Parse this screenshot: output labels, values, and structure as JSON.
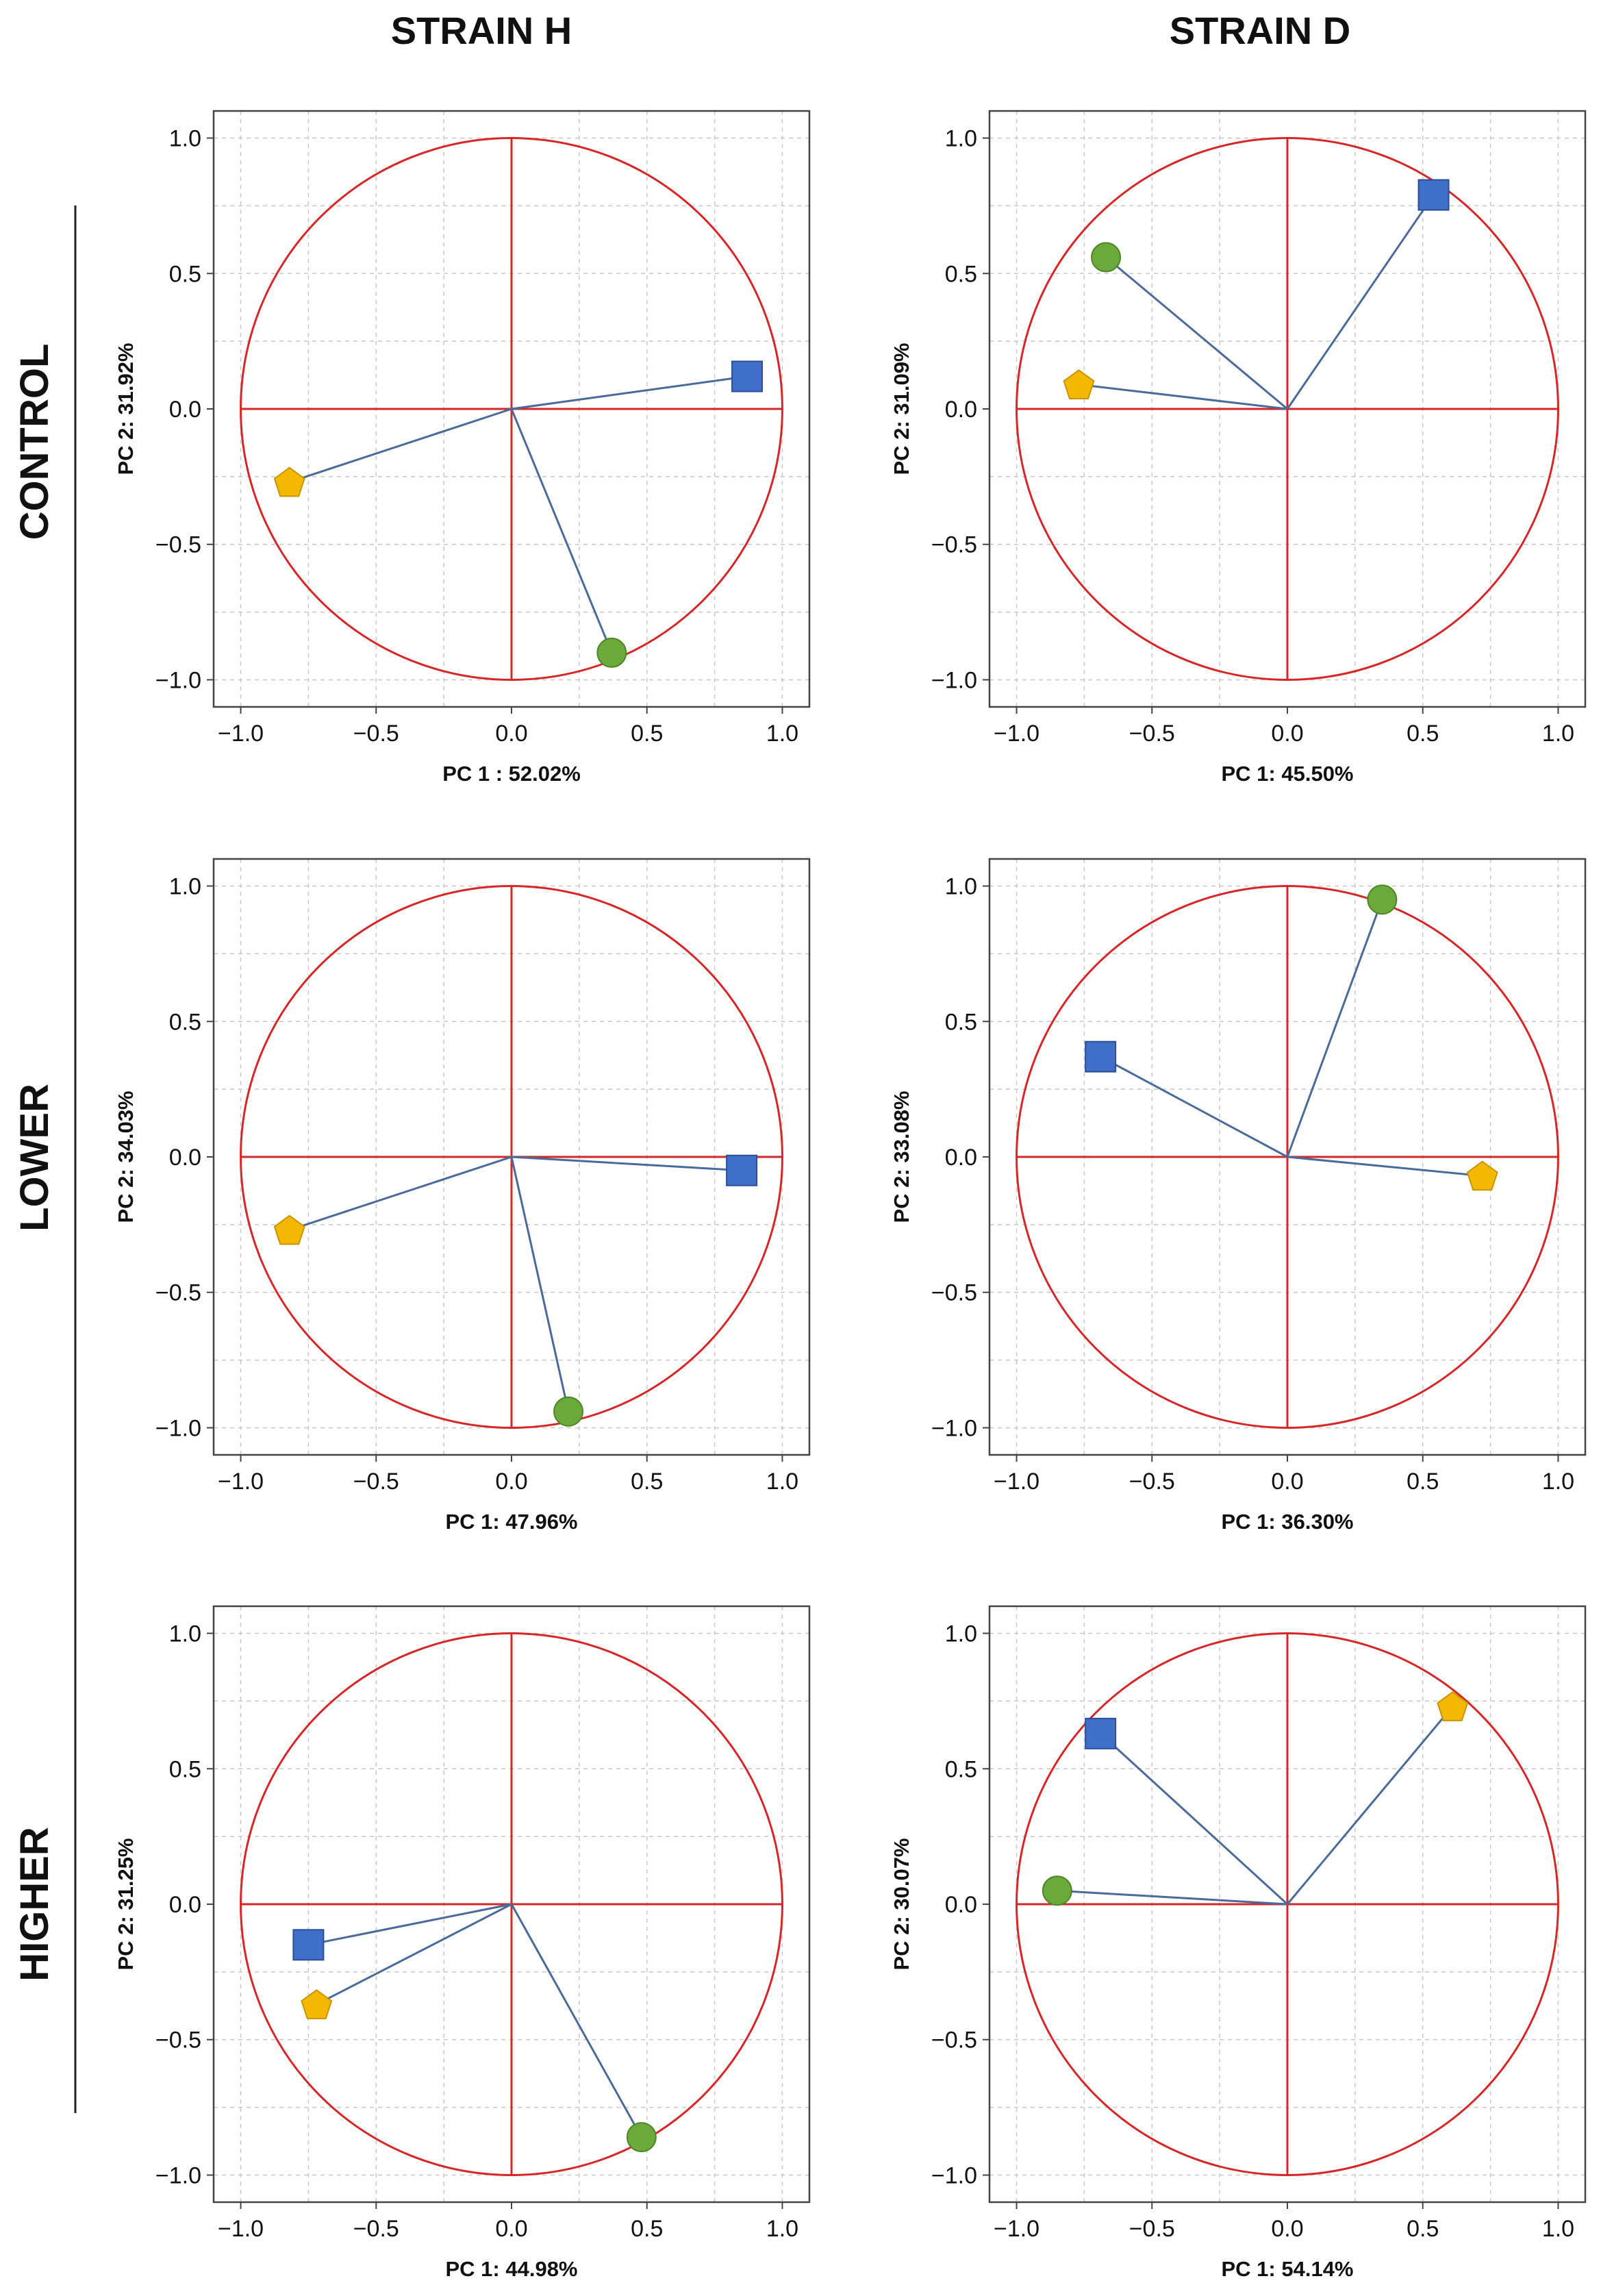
{
  "figure": {
    "column_titles": [
      "STRAIN H",
      "STRAIN D"
    ],
    "row_titles": [
      "CONTROL",
      "LOWER",
      "HIGHER"
    ]
  },
  "colors": {
    "circle": "#d62728",
    "axes_lines": "#d62728",
    "vector": "#4a6b9a",
    "square": "#3f6fc8",
    "circle_marker": "#6aaa3a",
    "pentagon": "#f5b800",
    "grid": "#c8c8c8",
    "frame": "#444444"
  },
  "marker_legend": {
    "square": "square-marker",
    "circle": "circle-marker",
    "pentagon": "pentagon-marker"
  },
  "chart_data": [
    {
      "type": "scatter",
      "title": "STRAIN H - CONTROL",
      "xlabel": "PC 1 : 52.02%",
      "ylabel": "PC 2: 31.92%",
      "xlim": [
        -1.1,
        1.1
      ],
      "ylim": [
        -1.1,
        1.1
      ],
      "xticks": [
        "−1.0",
        "−0.5",
        "0.0",
        "0.5",
        "1.0"
      ],
      "yticks": [
        "1.0",
        "0.5",
        "0.0",
        "−0.5",
        "−1.0"
      ],
      "grid": true,
      "points": [
        {
          "marker": "square",
          "x": 0.87,
          "y": 0.12
        },
        {
          "marker": "pentagon",
          "x": -0.82,
          "y": -0.27
        },
        {
          "marker": "circle",
          "x": 0.37,
          "y": -0.9
        }
      ]
    },
    {
      "type": "scatter",
      "title": "STRAIN D - CONTROL",
      "xlabel": "PC 1: 45.50%",
      "ylabel": "PC 2: 31.09%",
      "xlim": [
        -1.1,
        1.1
      ],
      "ylim": [
        -1.1,
        1.1
      ],
      "xticks": [
        "−1.0",
        "−0.5",
        "0.0",
        "0.5",
        "1.0"
      ],
      "yticks": [
        "1.0",
        "0.5",
        "0.0",
        "−0.5",
        "−1.0"
      ],
      "grid": true,
      "points": [
        {
          "marker": "square",
          "x": 0.54,
          "y": 0.79
        },
        {
          "marker": "circle",
          "x": -0.67,
          "y": 0.56
        },
        {
          "marker": "pentagon",
          "x": -0.77,
          "y": 0.09
        }
      ]
    },
    {
      "type": "scatter",
      "title": "STRAIN H - LOWER",
      "xlabel": "PC 1: 47.96%",
      "ylabel": "PC 2: 34.03%",
      "xlim": [
        -1.1,
        1.1
      ],
      "ylim": [
        -1.1,
        1.1
      ],
      "xticks": [
        "−1.0",
        "−0.5",
        "0.0",
        "0.5",
        "1.0"
      ],
      "yticks": [
        "1.0",
        "0.5",
        "0.0",
        "−0.5",
        "−1.0"
      ],
      "grid": true,
      "points": [
        {
          "marker": "square",
          "x": 0.85,
          "y": -0.05
        },
        {
          "marker": "pentagon",
          "x": -0.82,
          "y": -0.27
        },
        {
          "marker": "circle",
          "x": 0.21,
          "y": -0.94
        }
      ]
    },
    {
      "type": "scatter",
      "title": "STRAIN D - LOWER",
      "xlabel": "PC 1: 36.30%",
      "ylabel": "PC 2: 33.08%",
      "xlim": [
        -1.1,
        1.1
      ],
      "ylim": [
        -1.1,
        1.1
      ],
      "xticks": [
        "−1.0",
        "−0.5",
        "0.0",
        "0.5",
        "1.0"
      ],
      "yticks": [
        "1.0",
        "0.5",
        "0.0",
        "−0.5",
        "−1.0"
      ],
      "grid": true,
      "points": [
        {
          "marker": "circle",
          "x": 0.35,
          "y": 0.95
        },
        {
          "marker": "square",
          "x": -0.69,
          "y": 0.37
        },
        {
          "marker": "pentagon",
          "x": 0.72,
          "y": -0.07
        }
      ]
    },
    {
      "type": "scatter",
      "title": "STRAIN H - HIGHER",
      "xlabel": "PC 1: 44.98%",
      "ylabel": "PC 2: 31.25%",
      "xlim": [
        -1.1,
        1.1
      ],
      "ylim": [
        -1.1,
        1.1
      ],
      "xticks": [
        "−1.0",
        "−0.5",
        "0.0",
        "0.5",
        "1.0"
      ],
      "yticks": [
        "1.0",
        "0.5",
        "0.0",
        "−0.5",
        "−1.0"
      ],
      "grid": true,
      "points": [
        {
          "marker": "square",
          "x": -0.75,
          "y": -0.15
        },
        {
          "marker": "pentagon",
          "x": -0.72,
          "y": -0.37
        },
        {
          "marker": "circle",
          "x": 0.48,
          "y": -0.86
        }
      ]
    },
    {
      "type": "scatter",
      "title": "STRAIN D - HIGHER",
      "xlabel": "PC 1: 54.14%",
      "ylabel": "PC 2: 30.07%",
      "xlim": [
        -1.1,
        1.1
      ],
      "ylim": [
        -1.1,
        1.1
      ],
      "xticks": [
        "−1.0",
        "−0.5",
        "0.0",
        "0.5",
        "1.0"
      ],
      "yticks": [
        "1.0",
        "0.5",
        "0.0",
        "−0.5",
        "−1.0"
      ],
      "grid": true,
      "points": [
        {
          "marker": "square",
          "x": -0.69,
          "y": 0.63
        },
        {
          "marker": "pentagon",
          "x": 0.61,
          "y": 0.73
        },
        {
          "marker": "circle",
          "x": -0.85,
          "y": 0.05
        }
      ]
    }
  ]
}
